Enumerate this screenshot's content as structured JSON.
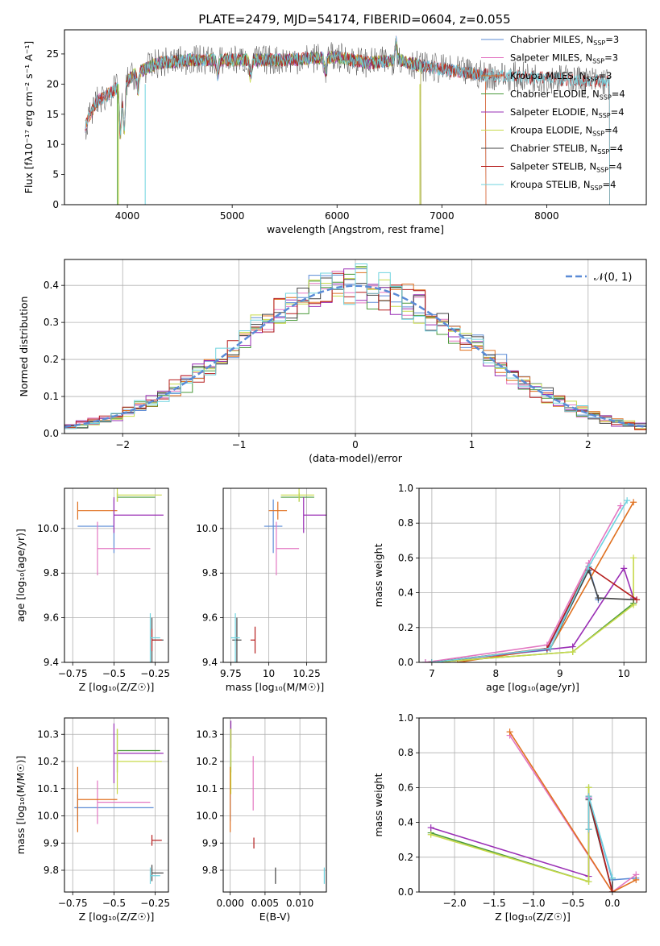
{
  "figure": {
    "title": "PLATE=2479, MJD=54174, FIBERID=0604, z=0.055"
  },
  "chart_data": [
    {
      "id": "spectrum",
      "type": "line",
      "xlabel": "wavelength [Angstrom, rest frame]",
      "ylabel": "Flux [fλ10⁻¹⁷ erg cm⁻² s⁻¹ A⁻¹]",
      "xlim": [
        3400,
        8950
      ],
      "ylim": [
        0,
        29
      ],
      "xticks": [
        4000,
        5000,
        6000,
        7000,
        8000
      ],
      "yticks": [
        0,
        5,
        10,
        15,
        20,
        25
      ],
      "legend_position": "top-right",
      "legend": [
        {
          "main": "Chabrier MILES, N",
          "sub": "SSP",
          "tail": "=3",
          "color": "#5b8bd6"
        },
        {
          "main": "Salpeter MILES, N",
          "sub": "SSP",
          "tail": "=3",
          "color": "#e377c2"
        },
        {
          "main": "Kroupa MILES, N",
          "sub": "SSP",
          "tail": "=3",
          "color": "#e0701f"
        },
        {
          "main": "Chabrier ELODIE, N",
          "sub": "SSP",
          "tail": "=4",
          "color": "#4a9a3a"
        },
        {
          "main": "Salpeter ELODIE, N",
          "sub": "SSP",
          "tail": "=4",
          "color": "#9a2fb5"
        },
        {
          "main": "Kroupa ELODIE, N",
          "sub": "SSP",
          "tail": "=4",
          "color": "#c7d94a"
        },
        {
          "main": "Chabrier STELIB, N",
          "sub": "SSP",
          "tail": "=4",
          "color": "#444444"
        },
        {
          "main": "Salpeter STELIB, N",
          "sub": "SSP",
          "tail": "=4",
          "color": "#b51d1d"
        },
        {
          "main": "Kroupa STELIB, N",
          "sub": "SSP",
          "tail": "=4",
          "color": "#6fd3df"
        }
      ],
      "continuum": [
        [
          3600,
          13
        ],
        [
          3700,
          17
        ],
        [
          3800,
          18
        ],
        [
          3950,
          20
        ],
        [
          4100,
          22
        ],
        [
          4300,
          23.5
        ],
        [
          4600,
          24
        ],
        [
          5000,
          24
        ],
        [
          5500,
          24
        ],
        [
          6000,
          24.5
        ],
        [
          6300,
          23.5
        ],
        [
          6600,
          24
        ],
        [
          6800,
          23
        ],
        [
          7000,
          22.5
        ],
        [
          7200,
          22
        ],
        [
          7400,
          21.5
        ],
        [
          8000,
          21
        ],
        [
          8400,
          20.5
        ],
        [
          8600,
          20.5
        ]
      ],
      "series_ranges": [
        {
          "name": "Chabrier MILES",
          "x_start": 3600,
          "x_end": 7420,
          "color": "#5b8bd6"
        },
        {
          "name": "Salpeter MILES",
          "x_start": 3600,
          "x_end": 7420,
          "color": "#e377c2"
        },
        {
          "name": "Kroupa MILES",
          "x_start": 3600,
          "x_end": 7420,
          "color": "#e0701f"
        },
        {
          "name": "Chabrier ELODIE",
          "x_start": 3900,
          "x_end": 6800,
          "color": "#4a9a3a"
        },
        {
          "name": "Salpeter ELODIE",
          "x_start": 3900,
          "x_end": 6800,
          "color": "#9a2fb5"
        },
        {
          "name": "Kroupa ELODIE",
          "x_start": 3900,
          "x_end": 6800,
          "color": "#c7d94a"
        },
        {
          "name": "Chabrier STELIB",
          "x_start": 3600,
          "x_end": 8600,
          "color": "#444444"
        },
        {
          "name": "Salpeter STELIB",
          "x_start": 3600,
          "x_end": 8600,
          "color": "#b51d1d"
        },
        {
          "name": "Kroupa STELIB",
          "x_start": 3600,
          "x_end": 8600,
          "color": "#6fd3df"
        }
      ]
    },
    {
      "id": "residuals",
      "type": "histogram",
      "xlabel": "(data-model)/error",
      "ylabel": "Normed distribution",
      "xlim": [
        -2.5,
        2.5
      ],
      "ylim": [
        0,
        0.47
      ],
      "xticks": [
        -2,
        -1,
        0,
        1,
        2
      ],
      "yticks": [
        0.0,
        0.1,
        0.2,
        0.3,
        0.4
      ],
      "legend": "𝒩(0, 1)",
      "legend_position": "top-right",
      "bin_width": 0.1,
      "reference_curve": {
        "name": "𝒩(0, 1)",
        "mean": 0,
        "sigma": 1,
        "color": "#5b8bd6"
      },
      "series_colors": [
        "#5b8bd6",
        "#e377c2",
        "#e0701f",
        "#4a9a3a",
        "#9a2fb5",
        "#c7d94a",
        "#444444",
        "#b51d1d",
        "#6fd3df"
      ]
    },
    {
      "id": "age-vs-Z",
      "type": "errorbar",
      "xlabel": "Z [log₁₀(Z/Z☉)]",
      "ylabel": "age  [log₁₀(age/yr)]",
      "xlim": [
        -0.8,
        -0.17
      ],
      "ylim": [
        9.4,
        10.18
      ],
      "xticks": [
        -0.75,
        -0.5,
        -0.25
      ],
      "yticks": [
        9.4,
        9.6,
        9.8,
        10.0
      ],
      "points": [
        {
          "x": -0.5,
          "xerr": [
            0.22,
            0.0
          ],
          "y": 10.01,
          "yerr": 0.12,
          "color": "#5b8bd6"
        },
        {
          "x": -0.6,
          "xerr": [
            0.0,
            0.32
          ],
          "y": 9.91,
          "yerr": 0.12,
          "color": "#e377c2"
        },
        {
          "x": -0.72,
          "xerr": [
            0.0,
            0.24
          ],
          "y": 10.08,
          "yerr": 0.04,
          "color": "#e0701f"
        },
        {
          "x": -0.48,
          "xerr": [
            0.0,
            0.23
          ],
          "y": 10.14,
          "yerr": 0.02,
          "color": "#4a9a3a"
        },
        {
          "x": -0.5,
          "xerr": [
            0.0,
            0.3
          ],
          "y": 10.06,
          "yerr": 0.08,
          "color": "#9a2fb5"
        },
        {
          "x": -0.48,
          "xerr": [
            0.0,
            0.27
          ],
          "y": 10.15,
          "yerr": 0.03,
          "color": "#c7d94a"
        },
        {
          "x": -0.27,
          "xerr": [
            0.0,
            0.07
          ],
          "y": 9.5,
          "yerr": 0.1,
          "color": "#444444"
        },
        {
          "x": -0.27,
          "xerr": [
            0.0,
            0.06
          ],
          "y": 9.5,
          "yerr": 0.05,
          "color": "#b51d1d"
        },
        {
          "x": -0.28,
          "xerr": [
            0.0,
            0.06
          ],
          "y": 9.51,
          "yerr": 0.11,
          "color": "#6fd3df"
        }
      ]
    },
    {
      "id": "age-vs-mass",
      "type": "errorbar",
      "xlabel": "mass [log₁₀(M/M☉)]",
      "ylabel": "",
      "xlim": [
        9.7,
        10.38
      ],
      "ylim": [
        9.4,
        10.18
      ],
      "xticks": [
        9.75,
        10.0,
        10.25
      ],
      "yticks": [
        9.4,
        9.6,
        9.8,
        10.0
      ],
      "points": [
        {
          "x": 10.03,
          "xerr": [
            0.06,
            0.06
          ],
          "y": 10.01,
          "yerr": 0.12,
          "color": "#5b8bd6"
        },
        {
          "x": 10.05,
          "xerr": [
            0.0,
            0.15
          ],
          "y": 9.91,
          "yerr": 0.12,
          "color": "#e377c2"
        },
        {
          "x": 10.06,
          "xerr": [
            0.06,
            0.06
          ],
          "y": 10.08,
          "yerr": 0.04,
          "color": "#e0701f"
        },
        {
          "x": 10.2,
          "xerr": [
            0.12,
            0.1
          ],
          "y": 10.14,
          "yerr": 0.02,
          "color": "#4a9a3a"
        },
        {
          "x": 10.23,
          "xerr": [
            0.0,
            0.15
          ],
          "y": 10.06,
          "yerr": 0.08,
          "color": "#9a2fb5"
        },
        {
          "x": 10.2,
          "xerr": [
            0.12,
            0.1
          ],
          "y": 10.15,
          "yerr": 0.03,
          "color": "#c7d94a"
        },
        {
          "x": 9.79,
          "xerr": [
            0.03,
            0.03
          ],
          "y": 9.5,
          "yerr": 0.1,
          "color": "#444444"
        },
        {
          "x": 9.91,
          "xerr": [
            0.03,
            0.0
          ],
          "y": 9.5,
          "yerr": 0.06,
          "color": "#b51d1d"
        },
        {
          "x": 9.78,
          "xerr": [
            0.03,
            0.03
          ],
          "y": 9.51,
          "yerr": 0.11,
          "color": "#6fd3df"
        }
      ]
    },
    {
      "id": "mass-weight-vs-age",
      "type": "line",
      "xlabel": "age  [log₁₀(age/yr)]",
      "ylabel": "mass weight",
      "xlim": [
        6.8,
        10.35
      ],
      "ylim": [
        0,
        1
      ],
      "xticks": [
        7,
        8,
        9,
        10
      ],
      "yticks": [
        0.0,
        0.2,
        0.4,
        0.6,
        0.8,
        1.0
      ],
      "series": [
        {
          "color": "#5b8bd6",
          "x": [
            6.9,
            8.8,
            9.45,
            9.6
          ],
          "y": [
            0.0,
            0.07,
            0.55,
            0.36
          ]
        },
        {
          "color": "#e377c2",
          "x": [
            6.9,
            8.8,
            9.45,
            9.95
          ],
          "y": [
            0.0,
            0.1,
            0.57,
            0.9
          ]
        },
        {
          "color": "#e0701f",
          "x": [
            7.4,
            8.85,
            10.15
          ],
          "y": [
            0.0,
            0.08,
            0.92
          ]
        },
        {
          "color": "#4a9a3a",
          "x": [
            7.0,
            9.2,
            10.15
          ],
          "y": [
            0.0,
            0.06,
            0.34
          ]
        },
        {
          "color": "#9a2fb5",
          "x": [
            7.0,
            9.2,
            10.0,
            10.15
          ],
          "y": [
            0.0,
            0.09,
            0.54,
            0.37
          ]
        },
        {
          "color": "#c7d94a",
          "x": [
            7.0,
            9.2,
            10.15,
            10.15
          ],
          "y": [
            0.0,
            0.06,
            0.33,
            0.6
          ]
        },
        {
          "color": "#444444",
          "x": [
            7.0,
            8.85,
            9.45,
            9.6,
            10.15
          ],
          "y": [
            0.0,
            0.08,
            0.53,
            0.37,
            0.36
          ]
        },
        {
          "color": "#b51d1d",
          "x": [
            7.0,
            8.8,
            9.45,
            10.2
          ],
          "y": [
            0.0,
            0.08,
            0.55,
            0.36
          ]
        },
        {
          "color": "#6fd3df",
          "x": [
            7.0,
            8.85,
            9.45,
            10.05
          ],
          "y": [
            0.0,
            0.08,
            0.55,
            0.93
          ]
        }
      ]
    },
    {
      "id": "mass-vs-Z",
      "type": "errorbar",
      "xlabel": "Z [log₁₀(Z/Z☉)]",
      "ylabel": "mass [log₁₀(M/M☉)]",
      "xlim": [
        -0.8,
        -0.17
      ],
      "ylim": [
        9.72,
        10.36
      ],
      "xticks": [
        -0.75,
        -0.5,
        -0.25
      ],
      "yticks": [
        9.8,
        9.9,
        10.0,
        10.1,
        10.2,
        10.3
      ],
      "points": [
        {
          "x": -0.72,
          "xerr": [
            0.02,
            0.46
          ],
          "y": 10.03,
          "yerr": 0.05,
          "color": "#5b8bd6"
        },
        {
          "x": -0.6,
          "xerr": [
            0.0,
            0.32
          ],
          "y": 10.05,
          "yerr": 0.08,
          "color": "#e377c2"
        },
        {
          "x": -0.72,
          "xerr": [
            0.0,
            0.24
          ],
          "y": 10.06,
          "yerr": 0.12,
          "color": "#e0701f"
        },
        {
          "x": -0.48,
          "xerr": [
            0.0,
            0.26
          ],
          "y": 10.24,
          "yerr": 0.08,
          "color": "#4a9a3a"
        },
        {
          "x": -0.5,
          "xerr": [
            0.0,
            0.3
          ],
          "y": 10.23,
          "yerr": 0.11,
          "color": "#9a2fb5"
        },
        {
          "x": -0.48,
          "xerr": [
            0.0,
            0.27
          ],
          "y": 10.2,
          "yerr": 0.12,
          "color": "#c7d94a"
        },
        {
          "x": -0.27,
          "xerr": [
            0.0,
            0.07
          ],
          "y": 9.79,
          "yerr": 0.03,
          "color": "#444444"
        },
        {
          "x": -0.27,
          "xerr": [
            0.0,
            0.06
          ],
          "y": 9.91,
          "yerr": 0.02,
          "color": "#b51d1d"
        },
        {
          "x": -0.28,
          "xerr": [
            0.0,
            0.06
          ],
          "y": 9.78,
          "yerr": 0.03,
          "color": "#6fd3df"
        }
      ]
    },
    {
      "id": "mass-vs-ebv",
      "type": "errorbar",
      "xlabel": "E(B-V)",
      "ylabel": "",
      "xlim": [
        -0.001,
        0.0138
      ],
      "ylim": [
        9.72,
        10.36
      ],
      "xticks": [
        0.0,
        0.005,
        0.01
      ],
      "xtick_labels": [
        "0.000",
        "0.005",
        "0.010"
      ],
      "yticks": [
        9.8,
        9.9,
        10.0,
        10.1,
        10.2,
        10.3
      ],
      "points": [
        {
          "x": 0.0,
          "y": 10.03,
          "yerr": 0.05,
          "color": "#5b8bd6"
        },
        {
          "x": 0.0033,
          "y": 10.12,
          "yerr": 0.1,
          "color": "#e377c2"
        },
        {
          "x": 0.0,
          "y": 10.06,
          "yerr": 0.12,
          "color": "#e0701f"
        },
        {
          "x": 0.0001,
          "y": 10.24,
          "yerr": 0.08,
          "color": "#4a9a3a"
        },
        {
          "x": 0.0001,
          "y": 10.3,
          "yerr": 0.05,
          "color": "#9a2fb5"
        },
        {
          "x": 0.0001,
          "y": 10.2,
          "yerr": 0.12,
          "color": "#c7d94a"
        },
        {
          "x": 0.0065,
          "y": 9.78,
          "yerr": 0.03,
          "color": "#444444"
        },
        {
          "x": 0.0034,
          "y": 9.9,
          "yerr": 0.02,
          "color": "#b51d1d"
        },
        {
          "x": 0.0135,
          "y": 9.78,
          "yerr": 0.03,
          "color": "#6fd3df"
        }
      ]
    },
    {
      "id": "mass-weight-vs-Z",
      "type": "line",
      "xlabel": "Z [log₁₀(Z/Z☉)]",
      "ylabel": "mass weight",
      "xlim": [
        -2.45,
        0.43
      ],
      "ylim": [
        0,
        1
      ],
      "xticks": [
        -2.0,
        -1.5,
        -1.0,
        -0.5,
        0.0
      ],
      "yticks": [
        0.0,
        0.2,
        0.4,
        0.6,
        0.8,
        1.0
      ],
      "series": [
        {
          "color": "#5b8bd6",
          "x": [
            -0.3,
            0.0,
            0.3
          ],
          "y": [
            0.55,
            0.07,
            0.08
          ]
        },
        {
          "color": "#e377c2",
          "x": [
            -1.3,
            0.0,
            0.3
          ],
          "y": [
            0.9,
            0.0,
            0.1
          ]
        },
        {
          "color": "#e0701f",
          "x": [
            -1.3,
            0.0,
            0.3
          ],
          "y": [
            0.92,
            0.0,
            0.07
          ]
        },
        {
          "color": "#4a9a3a",
          "x": [
            -2.3,
            -0.3,
            -0.3
          ],
          "y": [
            0.34,
            0.06,
            0.6
          ]
        },
        {
          "color": "#9a2fb5",
          "x": [
            -2.3,
            -0.3,
            -0.3
          ],
          "y": [
            0.37,
            0.09,
            0.54
          ]
        },
        {
          "color": "#c7d94a",
          "x": [
            -2.3,
            -0.3,
            -0.3
          ],
          "y": [
            0.33,
            0.06,
            0.6
          ]
        },
        {
          "color": "#444444",
          "x": [
            -0.3,
            0.0,
            0.0
          ],
          "y": [
            0.53,
            0.0,
            0.08
          ]
        },
        {
          "color": "#b51d1d",
          "x": [
            -0.3,
            -0.3,
            0.0
          ],
          "y": [
            0.36,
            0.55,
            0.0
          ]
        },
        {
          "color": "#6fd3df",
          "x": [
            -0.3,
            -0.3,
            0.0
          ],
          "y": [
            0.36,
            0.55,
            0.08
          ]
        }
      ]
    }
  ]
}
